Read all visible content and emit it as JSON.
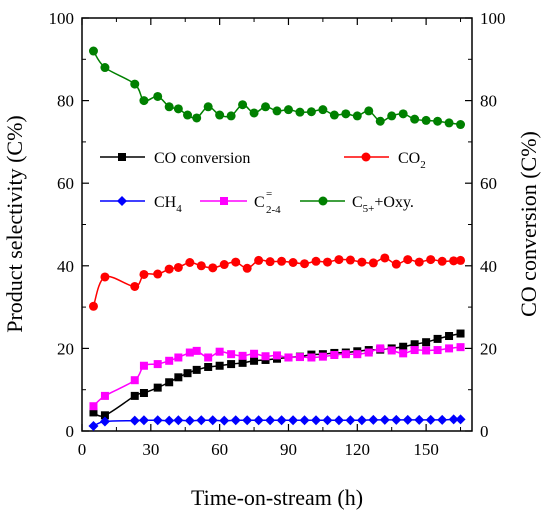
{
  "chart_data": {
    "type": "line",
    "xlabel": "Time-on-stream (h)",
    "ylabel_left": "Product selectivity (C%)",
    "ylabel_right": "CO conversion (C%)",
    "xlim": [
      0,
      170
    ],
    "ylim": [
      0,
      100
    ],
    "ylim_right": [
      0,
      100
    ],
    "xticks": [
      0,
      30,
      60,
      90,
      120,
      150
    ],
    "yticks": [
      0,
      20,
      40,
      60,
      80,
      100
    ],
    "grid": false,
    "legend_position": "center",
    "series": [
      {
        "key": "co_conversion",
        "name": "CO conversion",
        "color": "#000000",
        "marker": "square",
        "axis": "right",
        "x": [
          5,
          10,
          23,
          27,
          33,
          38,
          42,
          46,
          50,
          55,
          60,
          65,
          70,
          75,
          80,
          85,
          90,
          95,
          100,
          105,
          110,
          115,
          120,
          125,
          130,
          135,
          140,
          145,
          150,
          155,
          160,
          165
        ],
        "y": [
          4.5,
          3.8,
          8.5,
          9.2,
          10.5,
          11.8,
          13,
          14,
          14.8,
          15.5,
          15.8,
          16.2,
          16.5,
          17,
          17.2,
          17.5,
          17.8,
          18,
          18.5,
          18.6,
          18.9,
          19,
          19.3,
          19.6,
          19.7,
          20,
          20.4,
          21,
          21.5,
          22.3,
          23,
          23.6
        ]
      },
      {
        "key": "co2",
        "name": "CO2",
        "color": "#ff0000",
        "marker": "circle",
        "axis": "left",
        "x": [
          5,
          10,
          23,
          27,
          33,
          38,
          42,
          47,
          52,
          57,
          62,
          67,
          72,
          77,
          82,
          87,
          92,
          97,
          102,
          107,
          112,
          117,
          122,
          127,
          132,
          137,
          142,
          147,
          152,
          157,
          162,
          165
        ],
        "y": [
          30.2,
          37.3,
          35,
          37.9,
          38,
          39.2,
          39.6,
          40.8,
          40,
          39.5,
          40.3,
          40.9,
          39.4,
          41.3,
          41,
          41.1,
          40.8,
          40.5,
          41.1,
          40.9,
          41.5,
          41.4,
          40.9,
          40.7,
          41.9,
          40.4,
          41.5,
          40.9,
          41.5,
          41.1,
          41.2,
          41.3
        ]
      },
      {
        "key": "ch4",
        "name": "CH4",
        "color": "#0000ff",
        "marker": "diamond",
        "axis": "left",
        "x": [
          5,
          10,
          23,
          27,
          33,
          38,
          42,
          47,
          52,
          57,
          62,
          67,
          72,
          77,
          82,
          87,
          92,
          97,
          102,
          107,
          112,
          117,
          122,
          127,
          132,
          137,
          142,
          147,
          152,
          157,
          162,
          165
        ],
        "y": [
          1.2,
          2.3,
          2.5,
          2.6,
          2.6,
          2.5,
          2.6,
          2.5,
          2.6,
          2.6,
          2.5,
          2.6,
          2.6,
          2.6,
          2.6,
          2.6,
          2.6,
          2.6,
          2.6,
          2.6,
          2.6,
          2.6,
          2.6,
          2.7,
          2.7,
          2.7,
          2.7,
          2.7,
          2.7,
          2.7,
          2.8,
          2.8
        ]
      },
      {
        "key": "c2_4",
        "name": "C2-4=",
        "color": "#ff00ff",
        "marker": "square",
        "axis": "left",
        "x": [
          5,
          10,
          23,
          27,
          33,
          38,
          42,
          47,
          50,
          55,
          60,
          65,
          70,
          75,
          80,
          85,
          90,
          95,
          100,
          105,
          110,
          115,
          120,
          125,
          130,
          135,
          140,
          145,
          150,
          155,
          160,
          165
        ],
        "y": [
          6,
          8.5,
          12.3,
          15.8,
          16.2,
          17,
          17.8,
          19,
          19.4,
          17.8,
          19.2,
          18.6,
          18.2,
          18.7,
          18.1,
          18.3,
          17.8,
          17.9,
          17.8,
          18,
          18.4,
          18.6,
          18.6,
          19,
          20,
          19.5,
          18.8,
          19.6,
          19.5,
          19.6,
          20,
          20.3
        ]
      },
      {
        "key": "c5_oxy",
        "name": "C5++Oxy.",
        "color": "#008000",
        "marker": "circle",
        "axis": "left",
        "x": [
          5,
          10,
          23,
          27,
          33,
          38,
          42,
          46,
          50,
          55,
          60,
          65,
          70,
          75,
          80,
          85,
          90,
          95,
          100,
          105,
          110,
          115,
          120,
          125,
          130,
          135,
          140,
          145,
          150,
          155,
          160,
          165
        ],
        "y": [
          92,
          88,
          84,
          80,
          81,
          78.5,
          78,
          76.5,
          75.8,
          78.5,
          76.5,
          76.3,
          79,
          77,
          78.5,
          77.5,
          77.8,
          77.2,
          77.3,
          77.8,
          76.5,
          76.8,
          76.3,
          77.5,
          75,
          76.3,
          76.8,
          75.5,
          75.2,
          75,
          74.6,
          74.2
        ]
      }
    ]
  },
  "legend": {
    "co_conversion": "CO conversion",
    "co2_base": "CO",
    "co2_sub": "2",
    "ch4_base": "CH",
    "ch4_sub": "4",
    "c24_base": "C",
    "c24_sup": "=",
    "c24_sub": "2-4",
    "c5_base": "C",
    "c5_sub": "5+",
    "c5_rest": "+Oxy."
  }
}
